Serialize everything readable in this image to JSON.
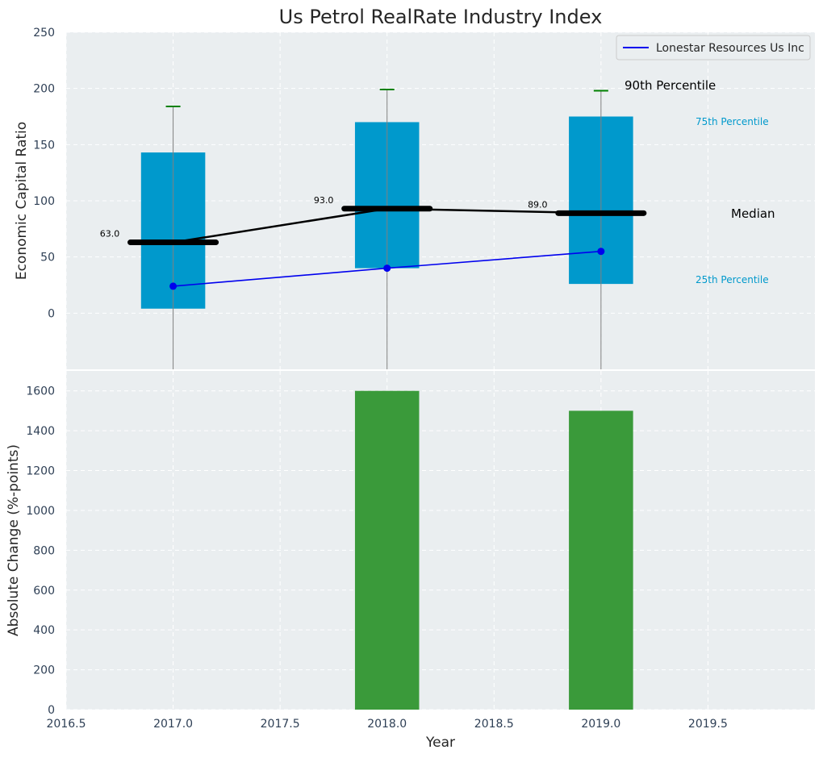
{
  "chart_data": [
    {
      "type": "box",
      "title": "Us Petrol RealRate Industry Index",
      "ylabel": "Economic Capital Ratio",
      "xlim": [
        2016.5,
        2020.0
      ],
      "ylim": [
        -50,
        250
      ],
      "yticks": [
        0,
        50,
        100,
        150,
        200,
        250
      ],
      "grid": true,
      "years": [
        2017,
        2018,
        2019
      ],
      "p25": [
        4,
        40,
        26
      ],
      "p75": [
        143,
        170,
        175
      ],
      "p90": [
        184,
        199,
        198
      ],
      "median": [
        63,
        93,
        89
      ],
      "median_labels": [
        "63.0",
        "93.0",
        "89.0"
      ],
      "series": [
        {
          "name": "Lonestar Resources Us Inc",
          "color": "#0000ee",
          "values": [
            24,
            40,
            55
          ]
        }
      ],
      "legend": "top-right",
      "annotations": {
        "p90": "90th Percentile",
        "p75": "75th Percentile",
        "median": "Median",
        "p25": "25th Percentile"
      },
      "colors": {
        "box": "#0099cc",
        "median": "#000000",
        "whisker_cap": "#008000",
        "whisker": "#808080"
      }
    },
    {
      "type": "bar",
      "xlabel": "Year",
      "ylabel": "Absolute Change (%-points)",
      "xlim": [
        2016.5,
        2020.0
      ],
      "ylim": [
        0,
        1700
      ],
      "yticks": [
        0,
        200,
        400,
        600,
        800,
        1000,
        1200,
        1400,
        1600
      ],
      "xticks": [
        2016.5,
        2017.0,
        2017.5,
        2018.0,
        2018.5,
        2019.0,
        2019.5
      ],
      "xtick_labels": [
        "2016.5",
        "2017.0",
        "2017.5",
        "2018.0",
        "2018.5",
        "2019.0",
        "2019.5"
      ],
      "grid": true,
      "categories": [
        2018,
        2019
      ],
      "values": [
        1600,
        1500
      ],
      "color": "#3a9a3a"
    }
  ]
}
